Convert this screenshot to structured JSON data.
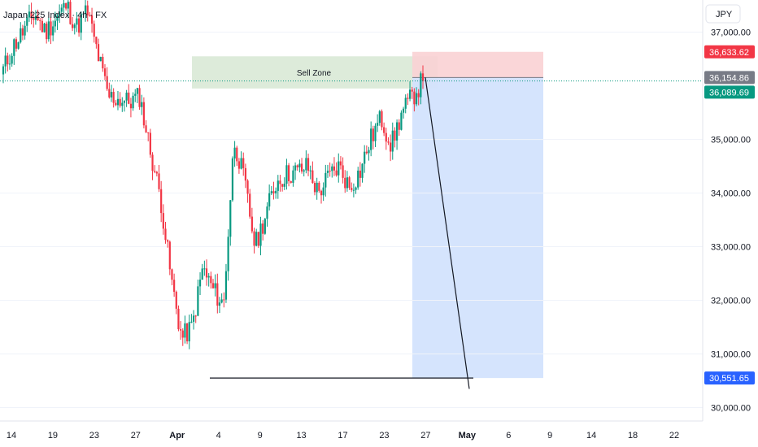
{
  "header": {
    "symbol_title": "Japan 225 Index · 4h · FX"
  },
  "currency": {
    "label": "JPY"
  },
  "chart_data": {
    "type": "candlestick",
    "title": "Japan 225 Index · 4h · FX",
    "currency": "JPY",
    "y_ticks": [
      {
        "value": 30000,
        "label": "30,000.00"
      },
      {
        "value": 31000,
        "label": "31,000.00"
      },
      {
        "value": 32000,
        "label": "32,000.00"
      },
      {
        "value": 33000,
        "label": "33,000.00"
      },
      {
        "value": 34000,
        "label": "34,000.00"
      },
      {
        "value": 35000,
        "label": "35,000.00"
      },
      {
        "value": 37000,
        "label": "37,000.00"
      }
    ],
    "ylim": [
      29750,
      37600
    ],
    "x_ticks": [
      {
        "label": "14",
        "bold": false
      },
      {
        "label": "19",
        "bold": false
      },
      {
        "label": "23",
        "bold": false
      },
      {
        "label": "27",
        "bold": false
      },
      {
        "label": "Apr",
        "bold": true
      },
      {
        "label": "4",
        "bold": false
      },
      {
        "label": "9",
        "bold": false
      },
      {
        "label": "13",
        "bold": false
      },
      {
        "label": "17",
        "bold": false
      },
      {
        "label": "23",
        "bold": false
      },
      {
        "label": "27",
        "bold": false
      },
      {
        "label": "May",
        "bold": true
      },
      {
        "label": "6",
        "bold": false
      },
      {
        "label": "9",
        "bold": false
      },
      {
        "label": "14",
        "bold": false
      },
      {
        "label": "18",
        "bold": false
      },
      {
        "label": "22",
        "bold": false
      }
    ],
    "price_waypoints": [
      36300,
      36750,
      37050,
      37350,
      37000,
      37250,
      37500,
      37100,
      37400,
      36600,
      35800,
      35750,
      35700,
      35800,
      34800,
      33900,
      32400,
      31300,
      31500,
      32600,
      32200,
      31900,
      35000,
      34200,
      33000,
      33600,
      34200,
      34350,
      34400,
      34500,
      34000,
      34300,
      34500,
      34100,
      34400,
      35000,
      35400,
      34900,
      35500,
      35800,
      36100
    ],
    "price_tags": [
      {
        "label": "36,633.62",
        "value": 36633.62,
        "color": "#f23645"
      },
      {
        "label": "36,154.86",
        "value": 36154.86,
        "color": "#787b86"
      },
      {
        "label": "36,089.69",
        "value": 36089.69,
        "color": "#089981"
      },
      {
        "label": "30,551.65",
        "value": 30551.65,
        "color": "#2962ff"
      }
    ],
    "current_price": 36089.69,
    "annotations": {
      "sell_zone": {
        "label": "Sell Zone",
        "top": 36550,
        "bottom": 35950,
        "color": "#d7e8d4"
      },
      "stop_zone": {
        "top": 36633.62,
        "bottom": 36154.86,
        "color": "#f9d1d4"
      },
      "target_zone": {
        "top": 36154.86,
        "bottom": 30551.65,
        "color": "#d3e3fd"
      },
      "support_line": {
        "value": 30551.65
      },
      "projection_line": {
        "from": 36154.86,
        "to": 30350
      }
    }
  }
}
